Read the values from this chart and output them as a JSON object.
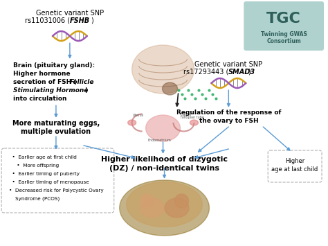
{
  "bg_color": "#ffffff",
  "fig_width": 4.74,
  "fig_height": 3.55,
  "dpi": 100,
  "arrow_color": "#5b9bd5",
  "box_edge_color": "#b0b0b0",
  "text_color": "#000000",
  "tgc_bg": "#7ab8b0",
  "tgc_text": "#2e5f5a",
  "box_bullets": [
    "  •  Earlier age at first child",
    "     •  More offspring",
    "  •  Earlier timing of puberty",
    "  •  Earlier timing of menopause",
    "•  Decreased risk for Polycystic Ovary",
    "    Syndrome (PCOS)"
  ]
}
